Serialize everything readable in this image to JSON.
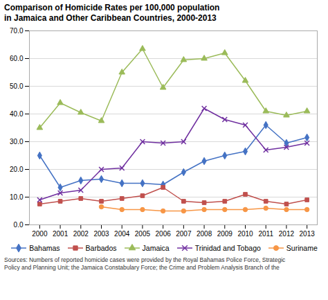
{
  "chart_data": {
    "type": "line",
    "title": "Comparison of Homicide Rates per 100,000 population",
    "subtitle": "in Jamaica and Other Caribbean Countries, 2000-2013",
    "caption": "Sources: Numbers of reported homicide cases were provided by the Royal Bahamas Police Force, Strategic\nPolicy and Planning Unit; the Jamaica Constabulary Force; the Crime and Problem Analysis Branch of the",
    "x": [
      2000,
      2001,
      2002,
      2003,
      2004,
      2005,
      2006,
      2007,
      2008,
      2009,
      2010,
      2011,
      2012,
      2013
    ],
    "series": [
      {
        "name": "Bahamas",
        "color": "#4472c4",
        "marker": "diamond",
        "values": [
          25.0,
          13.5,
          16.0,
          16.5,
          15.0,
          15.0,
          14.5,
          19.0,
          23.0,
          25.0,
          26.5,
          36.0,
          29.5,
          31.5
        ]
      },
      {
        "name": "Barbados",
        "color": "#c0504d",
        "marker": "square",
        "values": [
          7.5,
          8.5,
          9.5,
          8.5,
          9.5,
          10.5,
          13.5,
          8.5,
          8.0,
          8.5,
          11.0,
          8.5,
          7.5,
          9.0
        ]
      },
      {
        "name": "Jamaica",
        "color": "#9bbb59",
        "marker": "triangle",
        "values": [
          35.0,
          44.0,
          40.5,
          37.5,
          55.0,
          63.5,
          49.5,
          59.5,
          60.0,
          62.0,
          52.0,
          41.0,
          39.5,
          41.0
        ]
      },
      {
        "name": "Trinidad and Tobago",
        "color": "#7030a0",
        "marker": "times",
        "values": [
          9.0,
          11.5,
          12.5,
          20.0,
          20.5,
          30.0,
          29.5,
          30.0,
          42.0,
          38.0,
          36.0,
          27.0,
          28.0,
          29.5
        ]
      },
      {
        "name": "Suriname",
        "color": "#f79646",
        "marker": "circle",
        "values": [
          null,
          null,
          null,
          6.5,
          5.5,
          5.5,
          5.0,
          5.0,
          5.5,
          5.5,
          5.5,
          6.0,
          5.5,
          5.5
        ]
      }
    ],
    "xlim": [
      1999.5,
      2013.5
    ],
    "xticks": [
      2000,
      2001,
      2002,
      2003,
      2004,
      2005,
      2006,
      2007,
      2008,
      2009,
      2010,
      2011,
      2012,
      2013
    ],
    "ylim": [
      0,
      70
    ],
    "yticks": [
      {
        "value": 0,
        "label": "0.0"
      },
      {
        "value": 10,
        "label": "10.0"
      },
      {
        "value": 20,
        "label": "20.0"
      },
      {
        "value": 30,
        "label": "30.0"
      },
      {
        "value": 40,
        "label": "40.0"
      },
      {
        "value": 50,
        "label": "50.0"
      },
      {
        "value": 60,
        "label": "60.0"
      },
      {
        "value": 70,
        "label": "70.0"
      }
    ],
    "grid": true,
    "legend": "bottom"
  }
}
